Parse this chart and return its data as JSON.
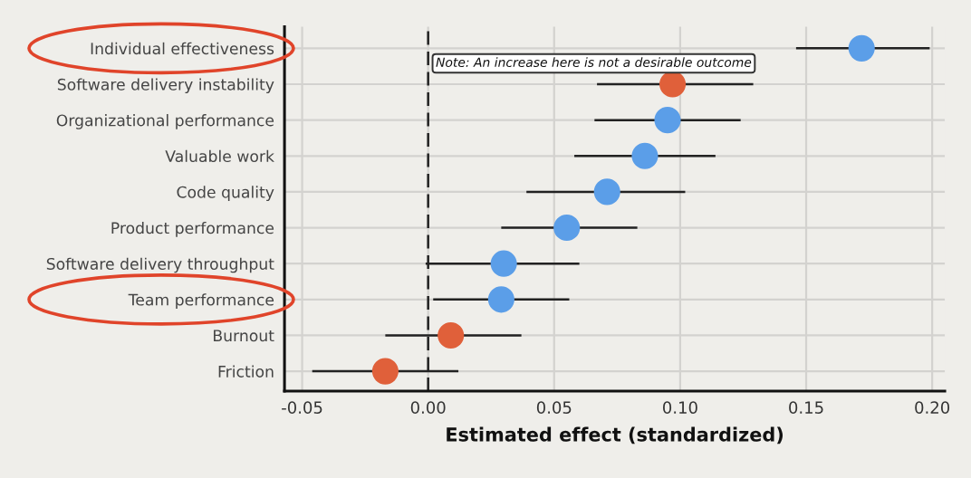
{
  "chart_data": {
    "type": "scatter",
    "categories": [
      "Individual effectiveness",
      "Software delivery instability",
      "Organizational performance",
      "Valuable work",
      "Code quality",
      "Product performance",
      "Software delivery throughput",
      "Team performance",
      "Burnout",
      "Friction"
    ],
    "values": [
      0.172,
      0.097,
      0.095,
      0.086,
      0.071,
      0.055,
      0.03,
      0.029,
      0.009,
      -0.017
    ],
    "errors": [
      [
        0.146,
        0.199
      ],
      [
        0.067,
        0.129
      ],
      [
        0.066,
        0.124
      ],
      [
        0.058,
        0.114
      ],
      [
        0.039,
        0.102
      ],
      [
        0.029,
        0.083
      ],
      [
        -0.001,
        0.06
      ],
      [
        0.002,
        0.056
      ],
      [
        -0.017,
        0.037
      ],
      [
        -0.046,
        0.012
      ]
    ],
    "colors": [
      "#5b9ee8",
      "#e0603a",
      "#5b9ee8",
      "#5b9ee8",
      "#5b9ee8",
      "#5b9ee8",
      "#5b9ee8",
      "#5b9ee8",
      "#e0603a",
      "#e0603a"
    ],
    "orientation": "horizontal",
    "xlabel": "Estimated effect (standardized)",
    "xlim": [
      -0.057,
      0.205
    ],
    "xticks": [
      {
        "value": -0.05,
        "label": "-0.05"
      },
      {
        "value": 0,
        "label": "0.00"
      },
      {
        "value": 0.05,
        "label": "0.05"
      },
      {
        "value": 0.1,
        "label": "0.10"
      },
      {
        "value": 0.15,
        "label": "0.15"
      },
      {
        "value": 0.2,
        "label": "0.20"
      }
    ],
    "ref_lines": [
      {
        "axis": "x",
        "value": 0,
        "line_style": "dashed",
        "color": "#222222"
      }
    ],
    "annotations": [
      "Note: An increase here is not a desirable outcome"
    ],
    "grid": true,
    "marker": "circle"
  }
}
